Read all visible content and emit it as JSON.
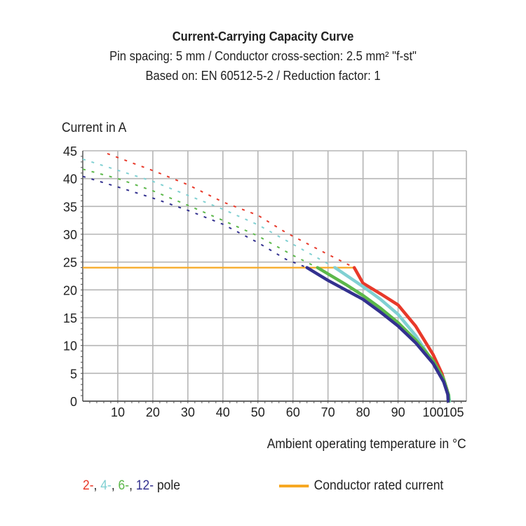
{
  "chart_data": {
    "type": "line",
    "title": "Current-Carrying Capacity Curve",
    "subtitle": [
      "Pin spacing: 5 mm / Conductor cross-section: 2.5 mm² \"f-st\"",
      "Based on: EN 60512-5-2 / Reduction factor: 1"
    ],
    "xlabel": "Ambient operating temperature in °C",
    "ylabel": "Current in A",
    "xlim": [
      0,
      109.5
    ],
    "ylim": [
      0,
      45
    ],
    "xticks": [
      10,
      20,
      30,
      40,
      50,
      60,
      70,
      80,
      90,
      100,
      105
    ],
    "yticks": [
      0,
      5,
      10,
      15,
      20,
      25,
      30,
      35,
      40,
      45
    ],
    "grid": true,
    "series": [
      {
        "name": "2-",
        "color": "#e8392a",
        "dashed": {
          "x": [
            7,
            21,
            30,
            40,
            50,
            58,
            69,
            77.5
          ],
          "y": [
            44.5,
            41.2,
            38.9,
            35.8,
            33.4,
            30.3,
            26.7,
            24
          ]
        },
        "solid": {
          "x": [
            77.5,
            80,
            85,
            90,
            95,
            100,
            102.5,
            104,
            104.5
          ],
          "y": [
            24,
            21.2,
            19.3,
            17.3,
            13.5,
            8.4,
            5,
            2,
            0
          ]
        }
      },
      {
        "name": "4-",
        "color": "#80d0d2",
        "dashed": {
          "x": [
            0,
            10,
            20,
            30,
            40,
            50,
            60,
            72
          ],
          "y": [
            43.5,
            41.5,
            39.5,
            37,
            34.5,
            31.7,
            28.2,
            24
          ]
        },
        "solid": {
          "x": [
            72,
            80,
            85,
            90,
            95,
            100,
            103,
            104.5,
            104.7
          ],
          "y": [
            24,
            20.6,
            18.3,
            15.6,
            11.8,
            7,
            3.5,
            1,
            0
          ]
        }
      },
      {
        "name": "6-",
        "color": "#5cb84a",
        "dashed": {
          "x": [
            0,
            10,
            20,
            30,
            40,
            50,
            60,
            67
          ],
          "y": [
            41.7,
            40,
            37.8,
            35.2,
            32.5,
            29.7,
            26.2,
            24
          ]
        },
        "solid": {
          "x": [
            67,
            75,
            80,
            85,
            90,
            95,
            100,
            103,
            104.4,
            104.5
          ],
          "y": [
            24,
            21,
            19,
            16.7,
            14.1,
            11,
            7.3,
            4,
            1.2,
            0
          ]
        }
      },
      {
        "name": "12-",
        "color": "#33318f",
        "dashed": {
          "x": [
            0,
            10,
            20,
            30,
            40,
            50,
            58,
            64
          ],
          "y": [
            40.4,
            38.5,
            36.5,
            34.3,
            31.8,
            28.5,
            25.5,
            24
          ]
        },
        "solid": {
          "x": [
            64,
            70,
            75,
            80,
            85,
            90,
            95,
            100,
            103,
            104.2,
            104.3
          ],
          "y": [
            24,
            21.7,
            20,
            18.3,
            16,
            13.5,
            10.5,
            6.8,
            3.5,
            1.2,
            0
          ]
        }
      }
    ],
    "rated_current": {
      "name": "Conductor rated current",
      "color": "#f7a823",
      "x": [
        0,
        77.5
      ],
      "y": [
        24,
        24
      ]
    },
    "legend": {
      "placement": "bottom",
      "poles": [
        {
          "text": "2-",
          "color": "#e8392a"
        },
        {
          "text": ", ",
          "color": "#222222"
        },
        {
          "text": "4-",
          "color": "#80d0d2"
        },
        {
          "text": ", ",
          "color": "#222222"
        },
        {
          "text": "6-",
          "color": "#5cb84a"
        },
        {
          "text": ", ",
          "color": "#222222"
        },
        {
          "text": "12-",
          "color": "#33318f"
        },
        {
          "text": " pole",
          "color": "#222222"
        }
      ],
      "rated_label": "Conductor rated current"
    }
  }
}
